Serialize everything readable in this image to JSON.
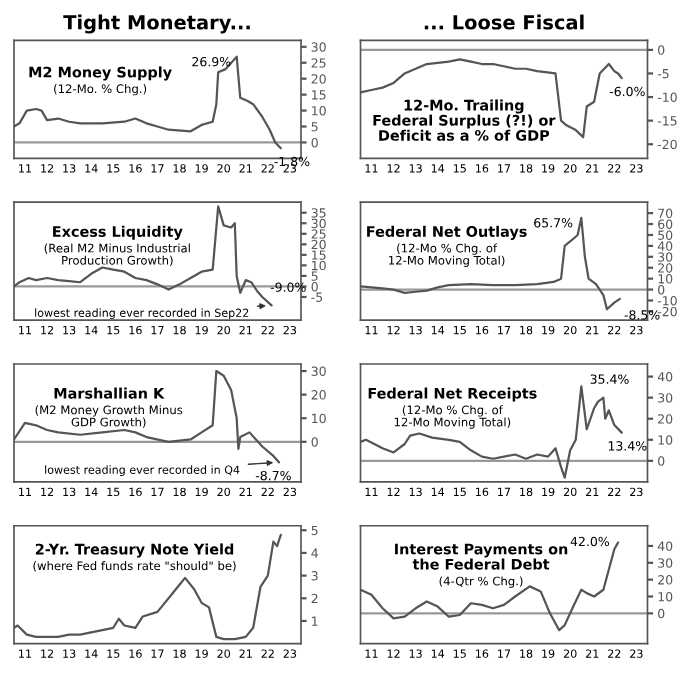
{
  "chart_data": [
    {
      "type": "line",
      "title": "Tight Monetary...",
      "subtitle": "M2 Money Supply",
      "annotations": [
        "(12-Mo. % Chg.)",
        {
          "text": "26.9%",
          "x": "2021-02",
          "y": 26.9
        },
        {
          "text": "-1.8%",
          "x": "2023-02",
          "y": -1.8
        }
      ],
      "x": [
        "2011-01",
        "2011-04",
        "2011-08",
        "2012-01",
        "2012-04",
        "2012-07",
        "2013-01",
        "2013-07",
        "2014-01",
        "2015-01",
        "2016-01",
        "2016-07",
        "2017-01",
        "2017-07",
        "2018-01",
        "2019-01",
        "2019-07",
        "2020-01",
        "2020-03",
        "2020-04",
        "2020-08",
        "2021-02",
        "2021-04",
        "2021-08",
        "2021-11",
        "2022-04",
        "2022-08",
        "2022-11",
        "2023-02"
      ],
      "series": [
        {
          "color": "#555555",
          "values": [
            5,
            6,
            10,
            10.5,
            10,
            7,
            7.5,
            6.5,
            6,
            6,
            6.5,
            7.5,
            6,
            5,
            4,
            3.5,
            5.5,
            6.5,
            12,
            22,
            23,
            26.9,
            14,
            13,
            12,
            8,
            4,
            0,
            -1.8
          ]
        }
      ],
      "ref_lines": [
        {
          "axis": "y",
          "value": 0,
          "color": "#999999"
        }
      ],
      "xlim": [
        "2011-01",
        "2024-01"
      ],
      "ylim": [
        -5,
        32
      ],
      "yticks": [
        0,
        5,
        10,
        15,
        20,
        25,
        30
      ],
      "xticks": [
        {
          "value": "2011-07",
          "label": "11"
        },
        {
          "value": "2012-07",
          "label": "12"
        },
        {
          "value": "2013-07",
          "label": "13"
        },
        {
          "value": "2014-07",
          "label": "14"
        },
        {
          "value": "2015-07",
          "label": "15"
        },
        {
          "value": "2016-07",
          "label": "16"
        },
        {
          "value": "2017-07",
          "label": "17"
        },
        {
          "value": "2018-07",
          "label": "18"
        },
        {
          "value": "2019-07",
          "label": "19"
        },
        {
          "value": "2020-07",
          "label": "20"
        },
        {
          "value": "2021-07",
          "label": "21"
        },
        {
          "value": "2022-07",
          "label": "22"
        },
        {
          "value": "2023-07",
          "label": "23"
        }
      ]
    },
    {
      "type": "line",
      "title": "... Loose Fiscal",
      "subtitle": "12-Mo. Trailing\nFederal Surplus (?!) or\nDeficit as a % of GDP",
      "annotations": [
        {
          "text": "-6.0%",
          "x": "2022-11",
          "y": -6.0
        }
      ],
      "x": [
        "2011-01",
        "2011-07",
        "2012-01",
        "2012-07",
        "2013-01",
        "2013-07",
        "2014-01",
        "2015-01",
        "2015-07",
        "2016-01",
        "2016-07",
        "2017-01",
        "2018-01",
        "2018-07",
        "2019-01",
        "2019-11",
        "2020-02",
        "2020-05",
        "2020-10",
        "2021-02",
        "2021-04",
        "2021-08",
        "2021-11",
        "2022-04",
        "2022-07",
        "2022-09",
        "2022-11"
      ],
      "series": [
        {
          "color": "#555555",
          "values": [
            -9,
            -8.5,
            -8,
            -7,
            -5,
            -4,
            -3,
            -2.5,
            -2,
            -2.5,
            -3,
            -3,
            -4,
            -4,
            -4.5,
            -5,
            -15,
            -16,
            -17,
            -18.5,
            -12,
            -11,
            -5,
            -3,
            -4.5,
            -5,
            -6.0
          ]
        }
      ],
      "ref_lines": [
        {
          "axis": "y",
          "value": 0,
          "color": "#999999"
        }
      ],
      "xlim": [
        "2011-01",
        "2024-01"
      ],
      "ylim": [
        -23,
        2
      ],
      "yticks": [
        -20,
        -15,
        -10,
        -5,
        0
      ],
      "xticks": [
        {
          "value": "2011-07",
          "label": "11"
        },
        {
          "value": "2012-07",
          "label": "12"
        },
        {
          "value": "2013-07",
          "label": "13"
        },
        {
          "value": "2014-07",
          "label": "14"
        },
        {
          "value": "2015-07",
          "label": "15"
        },
        {
          "value": "2016-07",
          "label": "16"
        },
        {
          "value": "2017-07",
          "label": "17"
        },
        {
          "value": "2018-07",
          "label": "18"
        },
        {
          "value": "2019-07",
          "label": "19"
        },
        {
          "value": "2020-07",
          "label": "20"
        },
        {
          "value": "2021-07",
          "label": "21"
        },
        {
          "value": "2022-07",
          "label": "22"
        },
        {
          "value": "2023-07",
          "label": "23"
        }
      ]
    },
    {
      "type": "line",
      "subtitle": "Excess Liquidity",
      "annotations": [
        "(Real M2 Minus Industrial\nProduction Growth)",
        {
          "text": "-9.0%",
          "x": "2022-09",
          "y": -9.0
        },
        {
          "text": "lowest reading ever recorded in Sep22",
          "x": "2022-09",
          "y": -9.0
        }
      ],
      "x": [
        "2011-01",
        "2011-04",
        "2011-09",
        "2012-01",
        "2012-07",
        "2013-01",
        "2013-07",
        "2014-01",
        "2014-07",
        "2015-01",
        "2015-07",
        "2016-01",
        "2016-07",
        "2017-01",
        "2017-07",
        "2018-01",
        "2018-07",
        "2019-01",
        "2019-07",
        "2020-01",
        "2020-04",
        "2020-07",
        "2020-11",
        "2021-01",
        "2021-02",
        "2021-04",
        "2021-07",
        "2021-10",
        "2022-01",
        "2022-04",
        "2022-09"
      ],
      "series": [
        {
          "color": "#555555",
          "values": [
            0,
            2,
            4,
            3,
            4,
            3,
            2.5,
            2,
            6,
            9,
            8,
            7,
            4,
            3,
            1,
            -1.5,
            1,
            4,
            7,
            8,
            38,
            29,
            28,
            30,
            5,
            -3,
            3,
            2,
            -2,
            -5,
            -9.0
          ]
        }
      ],
      "ref_lines": [
        {
          "axis": "y",
          "value": 0,
          "color": "#999999"
        }
      ],
      "xlim": [
        "2011-01",
        "2024-01"
      ],
      "ylim": [
        -16,
        40
      ],
      "yticks": [
        -5,
        0,
        5,
        10,
        15,
        20,
        25,
        30,
        35
      ],
      "xticks": [
        {
          "value": "2011-07",
          "label": "11"
        },
        {
          "value": "2012-07",
          "label": "12"
        },
        {
          "value": "2013-07",
          "label": "13"
        },
        {
          "value": "2014-07",
          "label": "14"
        },
        {
          "value": "2015-07",
          "label": "15"
        },
        {
          "value": "2016-07",
          "label": "16"
        },
        {
          "value": "2017-07",
          "label": "17"
        },
        {
          "value": "2018-07",
          "label": "18"
        },
        {
          "value": "2019-07",
          "label": "19"
        },
        {
          "value": "2020-07",
          "label": "20"
        },
        {
          "value": "2021-07",
          "label": "21"
        },
        {
          "value": "2022-07",
          "label": "22"
        },
        {
          "value": "2023-07",
          "label": "23"
        }
      ]
    },
    {
      "type": "line",
      "subtitle": "Federal Net Outlays",
      "annotations": [
        "(12-Mo % Chg. of\n12-Mo Moving Total)",
        {
          "text": "65.7%",
          "x": "2021-01",
          "y": 65.7
        },
        {
          "text": "-8.5%",
          "x": "2022-10",
          "y": -8.5
        }
      ],
      "x": [
        "2011-01",
        "2012-01",
        "2012-07",
        "2013-01",
        "2013-07",
        "2014-01",
        "2014-07",
        "2015-01",
        "2016-01",
        "2017-01",
        "2018-01",
        "2019-01",
        "2019-10",
        "2020-02",
        "2020-04",
        "2020-09",
        "2020-11",
        "2021-01",
        "2021-03",
        "2021-05",
        "2021-09",
        "2022-01",
        "2022-03",
        "2022-07",
        "2022-10"
      ],
      "series": [
        {
          "color": "#555555",
          "values": [
            3,
            1,
            0,
            -3,
            -2,
            -1,
            2,
            4,
            5,
            4,
            4,
            5,
            7,
            10,
            40,
            47,
            50,
            65.7,
            30,
            10,
            5,
            -5,
            -18,
            -12,
            -8.5
          ]
        }
      ],
      "ref_lines": [
        {
          "axis": "y",
          "value": 0,
          "color": "#999999"
        }
      ],
      "xlim": [
        "2011-01",
        "2024-01"
      ],
      "ylim": [
        -28,
        80
      ],
      "yticks": [
        -20,
        -10,
        0,
        10,
        20,
        30,
        40,
        50,
        60,
        70
      ],
      "xticks": [
        {
          "value": "2011-07",
          "label": "11"
        },
        {
          "value": "2012-07",
          "label": "12"
        },
        {
          "value": "2013-07",
          "label": "13"
        },
        {
          "value": "2014-07",
          "label": "14"
        },
        {
          "value": "2015-07",
          "label": "15"
        },
        {
          "value": "2016-07",
          "label": "16"
        },
        {
          "value": "2017-07",
          "label": "17"
        },
        {
          "value": "2018-07",
          "label": "18"
        },
        {
          "value": "2019-07",
          "label": "19"
        },
        {
          "value": "2020-07",
          "label": "20"
        },
        {
          "value": "2021-07",
          "label": "21"
        },
        {
          "value": "2022-07",
          "label": "22"
        },
        {
          "value": "2023-07",
          "label": "23"
        }
      ]
    },
    {
      "type": "line",
      "subtitle": "Marshallian K",
      "annotations": [
        "(M2 Money Growth Minus\nGDP Growth)",
        {
          "text": "-8.7%",
          "x": "2023-01",
          "y": -8.7
        },
        {
          "text": "lowest reading ever recorded in Q4",
          "x": "2023-01",
          "y": -8.7
        }
      ],
      "x": [
        "2011-01",
        "2011-07",
        "2012-01",
        "2012-07",
        "2013-01",
        "2014-01",
        "2015-01",
        "2016-01",
        "2016-07",
        "2017-01",
        "2018-01",
        "2019-01",
        "2019-07",
        "2020-01",
        "2020-03",
        "2020-07",
        "2020-11",
        "2021-02",
        "2021-03",
        "2021-04",
        "2021-09",
        "2022-04",
        "2022-10",
        "2023-01"
      ],
      "series": [
        {
          "color": "#555555",
          "values": [
            1,
            8,
            7,
            5,
            4,
            3,
            4,
            5,
            4,
            2,
            0,
            1,
            4,
            7,
            30,
            28,
            22,
            10,
            -3,
            2,
            4,
            -2,
            -6,
            -8.7
          ]
        }
      ],
      "ref_lines": [
        {
          "axis": "y",
          "value": 0,
          "color": "#999999"
        }
      ],
      "xlim": [
        "2011-01",
        "2024-01"
      ],
      "ylim": [
        -17,
        33
      ],
      "yticks": [
        0,
        10,
        20,
        30
      ],
      "xticks": [
        {
          "value": "2011-07",
          "label": "11"
        },
        {
          "value": "2012-07",
          "label": "12"
        },
        {
          "value": "2013-07",
          "label": "13"
        },
        {
          "value": "2014-07",
          "label": "14"
        },
        {
          "value": "2015-07",
          "label": "15"
        },
        {
          "value": "2016-07",
          "label": "16"
        },
        {
          "value": "2017-07",
          "label": "17"
        },
        {
          "value": "2018-07",
          "label": "18"
        },
        {
          "value": "2019-07",
          "label": "19"
        },
        {
          "value": "2020-07",
          "label": "20"
        },
        {
          "value": "2021-07",
          "label": "21"
        },
        {
          "value": "2022-07",
          "label": "22"
        },
        {
          "value": "2023-07",
          "label": "23"
        }
      ]
    },
    {
      "type": "line",
      "subtitle": "Federal Net Receipts",
      "annotations": [
        "(12-Mo % Chg. of\n12-Mo Moving Total)",
        {
          "text": "35.4%",
          "x": "2021-01",
          "y": 35.4
        },
        {
          "text": "13.4%",
          "x": "2022-11",
          "y": 13.4
        }
      ],
      "x": [
        "2011-01",
        "2011-04",
        "2012-01",
        "2012-07",
        "2013-01",
        "2013-04",
        "2013-09",
        "2014-04",
        "2015-01",
        "2015-07",
        "2016-01",
        "2016-07",
        "2017-01",
        "2017-07",
        "2018-01",
        "2018-07",
        "2019-01",
        "2019-07",
        "2019-11",
        "2020-02",
        "2020-04",
        "2020-07",
        "2020-10",
        "2021-01",
        "2021-04",
        "2021-08",
        "2021-10",
        "2022-01",
        "2022-02",
        "2022-04",
        "2022-07",
        "2022-11"
      ],
      "series": [
        {
          "color": "#555555",
          "values": [
            9,
            10,
            6,
            4,
            8,
            12,
            13,
            11,
            10,
            9,
            5,
            2,
            1,
            2,
            3,
            1,
            3,
            2,
            6,
            -3,
            -8,
            5,
            10,
            35.4,
            15,
            25,
            28,
            30,
            20,
            24,
            17,
            13.4
          ]
        }
      ],
      "ref_lines": [
        {
          "axis": "y",
          "value": 0,
          "color": "#999999"
        }
      ],
      "xlim": [
        "2011-01",
        "2024-01"
      ],
      "ylim": [
        -10,
        46
      ],
      "yticks": [
        0,
        10,
        20,
        30,
        40
      ],
      "xticks": [
        {
          "value": "2011-07",
          "label": "11"
        },
        {
          "value": "2012-07",
          "label": "12"
        },
        {
          "value": "2013-07",
          "label": "13"
        },
        {
          "value": "2014-07",
          "label": "14"
        },
        {
          "value": "2015-07",
          "label": "15"
        },
        {
          "value": "2016-07",
          "label": "16"
        },
        {
          "value": "2017-07",
          "label": "17"
        },
        {
          "value": "2018-07",
          "label": "18"
        },
        {
          "value": "2019-07",
          "label": "19"
        },
        {
          "value": "2020-07",
          "label": "20"
        },
        {
          "value": "2021-07",
          "label": "21"
        },
        {
          "value": "2022-07",
          "label": "22"
        },
        {
          "value": "2023-07",
          "label": "23"
        }
      ]
    },
    {
      "type": "line",
      "subtitle": "2-Yr. Treasury Note Yield",
      "annotations": [
        "(where Fed funds rate \"should\" be)"
      ],
      "x": [
        "2011-01",
        "2011-03",
        "2011-08",
        "2012-01",
        "2013-01",
        "2013-07",
        "2014-01",
        "2014-07",
        "2015-01",
        "2015-07",
        "2015-10",
        "2016-01",
        "2016-07",
        "2016-11",
        "2017-07",
        "2018-01",
        "2018-07",
        "2018-10",
        "2019-03",
        "2019-07",
        "2019-11",
        "2020-03",
        "2020-07",
        "2021-01",
        "2021-07",
        "2021-11",
        "2022-03",
        "2022-07",
        "2022-10",
        "2022-12",
        "2023-02"
      ],
      "series": [
        {
          "color": "#555555",
          "values": [
            0.7,
            0.8,
            0.4,
            0.3,
            0.3,
            0.4,
            0.4,
            0.5,
            0.6,
            0.7,
            1.1,
            0.8,
            0.7,
            1.2,
            1.4,
            2.0,
            2.6,
            2.9,
            2.4,
            1.8,
            1.6,
            0.3,
            0.2,
            0.2,
            0.3,
            0.7,
            2.5,
            3.0,
            4.5,
            4.3,
            4.8
          ]
        }
      ],
      "xlim": [
        "2011-01",
        "2024-01"
      ],
      "ylim": [
        0,
        5.2
      ],
      "yticks": [
        1,
        2,
        3,
        4,
        5
      ],
      "xticks": [
        {
          "value": "2011-07",
          "label": "11"
        },
        {
          "value": "2012-07",
          "label": "12"
        },
        {
          "value": "2013-07",
          "label": "13"
        },
        {
          "value": "2014-07",
          "label": "14"
        },
        {
          "value": "2015-07",
          "label": "15"
        },
        {
          "value": "2016-07",
          "label": "16"
        },
        {
          "value": "2017-07",
          "label": "17"
        },
        {
          "value": "2018-07",
          "label": "18"
        },
        {
          "value": "2019-07",
          "label": "19"
        },
        {
          "value": "2020-07",
          "label": "20"
        },
        {
          "value": "2021-07",
          "label": "21"
        },
        {
          "value": "2022-07",
          "label": "22"
        },
        {
          "value": "2023-07",
          "label": "23"
        }
      ]
    },
    {
      "type": "line",
      "subtitle": "Interest Payments on\nthe Federal Debt",
      "annotations": [
        "(4-Qtr % Chg.)",
        {
          "text": "42.0%",
          "x": "2022-09",
          "y": 42.0
        }
      ],
      "x": [
        "2011-01",
        "2011-07",
        "2012-01",
        "2012-07",
        "2013-01",
        "2013-07",
        "2014-01",
        "2014-07",
        "2015-01",
        "2015-07",
        "2016-01",
        "2016-07",
        "2017-01",
        "2017-07",
        "2018-01",
        "2018-09",
        "2019-03",
        "2019-08",
        "2020-01",
        "2020-04",
        "2020-09",
        "2021-01",
        "2021-04",
        "2021-08",
        "2022-01",
        "2022-07",
        "2022-09"
      ],
      "series": [
        {
          "color": "#555555",
          "values": [
            14,
            11,
            3,
            -3,
            -2,
            3,
            7,
            4,
            -2,
            -1,
            6,
            5,
            3,
            5,
            10,
            16,
            13,
            0,
            -10,
            -7,
            5,
            14,
            12,
            10,
            14,
            38,
            42.0
          ]
        }
      ],
      "ref_lines": [
        {
          "axis": "y",
          "value": 0,
          "color": "#999999"
        }
      ],
      "xlim": [
        "2011-01",
        "2024-01"
      ],
      "ylim": [
        -18,
        52
      ],
      "yticks": [
        0,
        10,
        20,
        30,
        40
      ],
      "xticks": [
        {
          "value": "2011-07",
          "label": "11"
        },
        {
          "value": "2012-07",
          "label": "12"
        },
        {
          "value": "2013-07",
          "label": "13"
        },
        {
          "value": "2014-07",
          "label": "14"
        },
        {
          "value": "2015-07",
          "label": "15"
        },
        {
          "value": "2016-07",
          "label": "16"
        },
        {
          "value": "2017-07",
          "label": "17"
        },
        {
          "value": "2018-07",
          "label": "18"
        },
        {
          "value": "2019-07",
          "label": "19"
        },
        {
          "value": "2020-07",
          "label": "20"
        },
        {
          "value": "2021-07",
          "label": "21"
        },
        {
          "value": "2022-07",
          "label": "22"
        },
        {
          "value": "2023-07",
          "label": "23"
        }
      ]
    }
  ]
}
